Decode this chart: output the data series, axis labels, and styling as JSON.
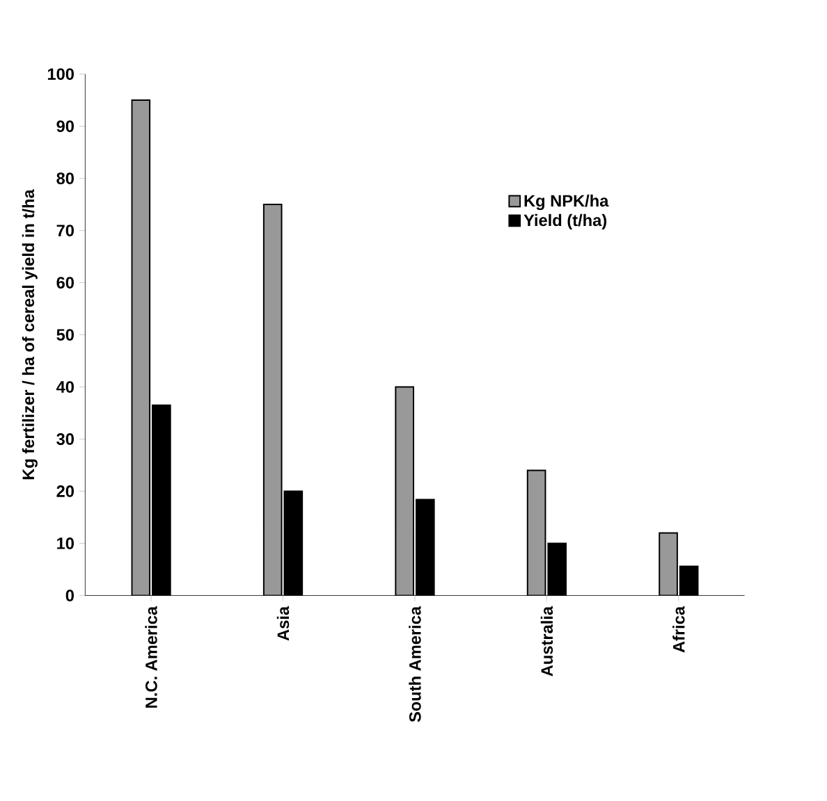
{
  "chart_data": {
    "type": "bar",
    "ylabel": "Kg fertilizer / ha of cereal yield in t/ha",
    "categories": [
      "N.C. America",
      "Asia",
      "South America",
      "Australia",
      "Africa"
    ],
    "series": [
      {
        "name": "Kg NPK/ha",
        "color": "#999999",
        "values": [
          95,
          75,
          40,
          24,
          12
        ]
      },
      {
        "name": "Yield (t/ha)",
        "color": "#000000",
        "values": [
          36.5,
          20,
          18.4,
          10,
          5.6
        ]
      }
    ],
    "ylim": [
      0,
      100
    ],
    "yticks": [
      0,
      10,
      20,
      30,
      40,
      50,
      60,
      70,
      80,
      90,
      100
    ],
    "legend": "top right",
    "grid": false
  }
}
